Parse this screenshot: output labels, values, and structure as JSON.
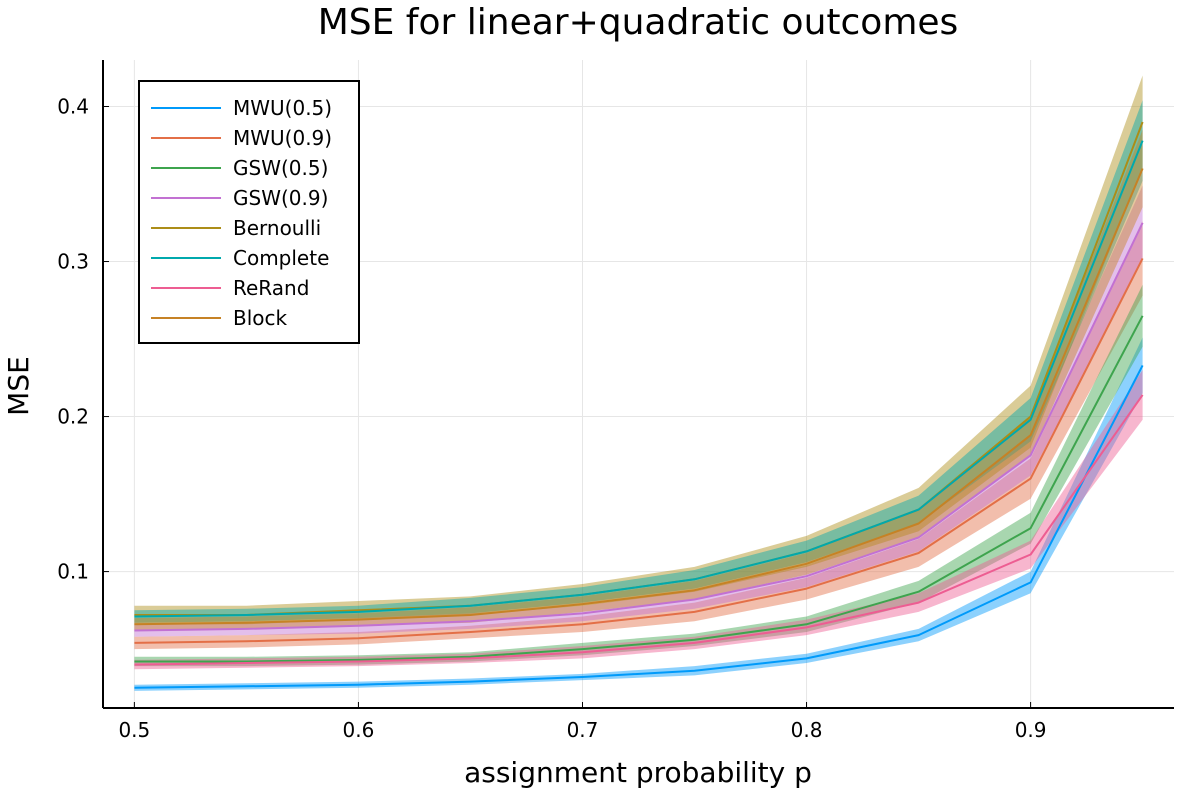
{
  "chart_data": {
    "type": "line",
    "title": "MSE for linear+quadratic outcomes",
    "xlabel": "assignment probability p",
    "ylabel": "MSE",
    "xlim": [
      0.486,
      0.964
    ],
    "ylim": [
      0.012,
      0.43
    ],
    "xticks": [
      0.5,
      0.6,
      0.7,
      0.8,
      0.9
    ],
    "xtick_labels": [
      "0.5",
      "0.6",
      "0.7",
      "0.8",
      "0.9"
    ],
    "yticks": [
      0.1,
      0.2,
      0.3,
      0.4
    ],
    "ytick_labels": [
      "0.1",
      "0.2",
      "0.3",
      "0.4"
    ],
    "grid": true,
    "legend_position": "top-left",
    "x": [
      0.5,
      0.55,
      0.6,
      0.65,
      0.7,
      0.75,
      0.8,
      0.85,
      0.9,
      0.95
    ],
    "series": [
      {
        "name": "MWU(0.5)",
        "color": "#009AFA",
        "values": [
          0.025,
          0.026,
          0.027,
          0.029,
          0.032,
          0.036,
          0.044,
          0.059,
          0.093,
          0.233
        ],
        "band": [
          0.002,
          0.002,
          0.002,
          0.002,
          0.002,
          0.003,
          0.003,
          0.004,
          0.007,
          0.018
        ]
      },
      {
        "name": "MWU(0.9)",
        "color": "#E36F47",
        "values": [
          0.054,
          0.055,
          0.057,
          0.061,
          0.066,
          0.074,
          0.089,
          0.112,
          0.16,
          0.302
        ],
        "band": [
          0.004,
          0.004,
          0.004,
          0.004,
          0.005,
          0.006,
          0.007,
          0.009,
          0.013,
          0.024
        ]
      },
      {
        "name": "GSW(0.5)",
        "color": "#3EA44E",
        "values": [
          0.042,
          0.042,
          0.043,
          0.045,
          0.05,
          0.056,
          0.066,
          0.087,
          0.128,
          0.265
        ],
        "band": [
          0.003,
          0.003,
          0.003,
          0.003,
          0.004,
          0.004,
          0.005,
          0.007,
          0.01,
          0.02
        ]
      },
      {
        "name": "GSW(0.9)",
        "color": "#C271D2",
        "values": [
          0.062,
          0.063,
          0.065,
          0.068,
          0.073,
          0.082,
          0.097,
          0.122,
          0.175,
          0.325
        ],
        "band": [
          0.004,
          0.004,
          0.005,
          0.005,
          0.005,
          0.006,
          0.007,
          0.009,
          0.013,
          0.024
        ]
      },
      {
        "name": "Bernoulli",
        "color": "#AC8D18",
        "values": [
          0.072,
          0.072,
          0.075,
          0.078,
          0.085,
          0.095,
          0.113,
          0.14,
          0.2,
          0.39
        ],
        "band": [
          0.006,
          0.006,
          0.006,
          0.006,
          0.007,
          0.008,
          0.01,
          0.014,
          0.02,
          0.03
        ]
      },
      {
        "name": "Complete",
        "color": "#00A9AD",
        "values": [
          0.071,
          0.072,
          0.074,
          0.078,
          0.085,
          0.095,
          0.113,
          0.14,
          0.198,
          0.378
        ],
        "band": [
          0.004,
          0.004,
          0.004,
          0.005,
          0.005,
          0.006,
          0.007,
          0.009,
          0.014,
          0.026
        ]
      },
      {
        "name": "ReRand",
        "color": "#ED5D92",
        "values": [
          0.04,
          0.041,
          0.042,
          0.044,
          0.048,
          0.054,
          0.064,
          0.08,
          0.111,
          0.214
        ],
        "band": [
          0.003,
          0.003,
          0.003,
          0.003,
          0.004,
          0.004,
          0.005,
          0.006,
          0.009,
          0.016
        ]
      },
      {
        "name": "Block",
        "color": "#C68225",
        "values": [
          0.066,
          0.067,
          0.069,
          0.072,
          0.079,
          0.088,
          0.105,
          0.131,
          0.188,
          0.36
        ],
        "band": [
          0.004,
          0.004,
          0.004,
          0.005,
          0.005,
          0.006,
          0.007,
          0.009,
          0.013,
          0.025
        ]
      }
    ]
  }
}
